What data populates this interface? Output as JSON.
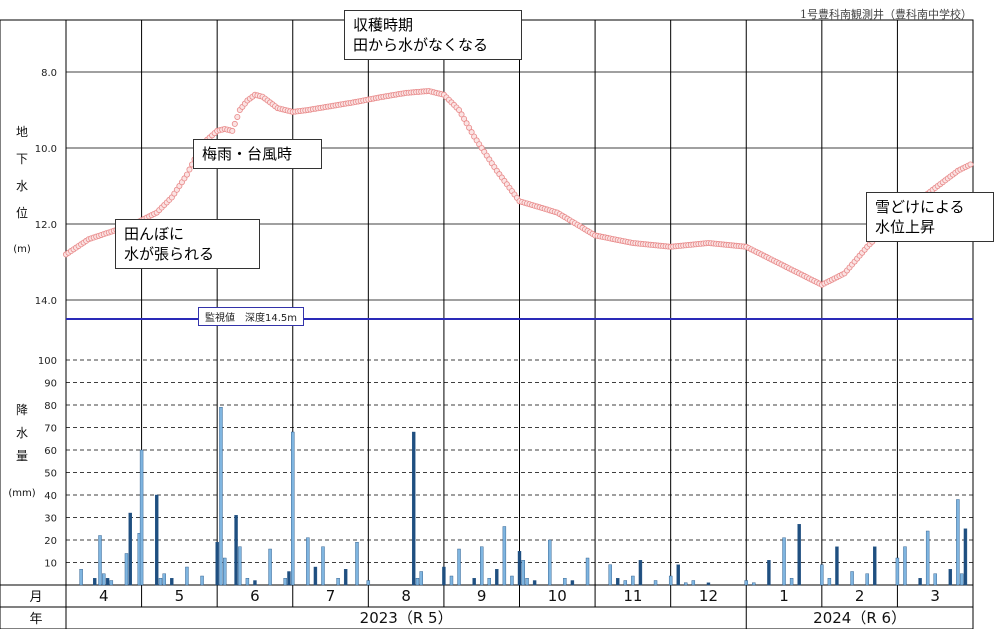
{
  "source_label": "1号豊科南観測井（豊科南中学校）",
  "threshold_label": "監視値　深度14.5m",
  "annotations": [
    {
      "text": "収穫時期\n田から水がなくなる"
    },
    {
      "text": "梅雨・台風時"
    },
    {
      "text": "田んぼに\n水が張られる"
    },
    {
      "text": "雪どけによる\n水位上昇"
    }
  ],
  "colors": {
    "level_line": "#e88a8a",
    "threshold_line": "#2a2ab8",
    "bar_light": "#7fb5e0",
    "bar_dark": "#1f4f80"
  },
  "chart_data": [
    {
      "type": "line",
      "title": "",
      "ylabel": "地下水位(m)",
      "ylabel_unit": "(m)",
      "y_inverted": true,
      "ylim": [
        7.5,
        15.5
      ],
      "yticks": [
        "8.0",
        "10.0",
        "12.0",
        "14.0"
      ],
      "grid": true,
      "threshold": {
        "value": 14.5,
        "label": "監視値　深度14.5m"
      },
      "x_months": [
        "4",
        "5",
        "6",
        "7",
        "8",
        "9",
        "10",
        "11",
        "12",
        "1",
        "2",
        "3"
      ],
      "series": [
        {
          "x": [
            0.0,
            0.3,
            0.6,
            0.9,
            1.2,
            1.4,
            1.6,
            1.8,
            2.0,
            2.1,
            2.2,
            2.3,
            2.4,
            2.5,
            2.6,
            2.7,
            2.8,
            3.0,
            3.2,
            3.5,
            3.8,
            4.2,
            4.5,
            4.8,
            5.0,
            5.2,
            5.4,
            5.7,
            6.0,
            6.5,
            7.0,
            7.5,
            8.0,
            8.5,
            9.0,
            9.3,
            9.5,
            9.8,
            10.0,
            10.3,
            10.6,
            10.8,
            11.0,
            11.2,
            11.4,
            11.6,
            11.8,
            12.0
          ],
          "values": [
            12.8,
            12.4,
            12.2,
            12.0,
            11.7,
            11.3,
            10.7,
            9.9,
            9.55,
            9.5,
            9.55,
            9.0,
            8.75,
            8.6,
            8.65,
            8.8,
            8.95,
            9.05,
            9.0,
            8.9,
            8.8,
            8.65,
            8.55,
            8.5,
            8.6,
            9.0,
            9.7,
            10.6,
            11.4,
            11.7,
            12.3,
            12.5,
            12.6,
            12.5,
            12.6,
            12.9,
            13.1,
            13.4,
            13.6,
            13.3,
            12.6,
            12.2,
            11.8,
            11.5,
            11.2,
            10.9,
            10.6,
            10.4
          ]
        }
      ]
    },
    {
      "type": "bar",
      "ylabel": "降水量(mm)",
      "ylabel_unit": "(mm)",
      "ylim": [
        0,
        100
      ],
      "yticks": [
        "10",
        "20",
        "30",
        "40",
        "50",
        "60",
        "70",
        "80",
        "90",
        "100"
      ],
      "grid": true,
      "x_months": [
        "4",
        "5",
        "6",
        "7",
        "8",
        "9",
        "10",
        "11",
        "12",
        "1",
        "2",
        "3"
      ],
      "month_row_label": "月",
      "year_row_label": "年",
      "year_labels": [
        "2023（R 5）",
        "2024（R 6）"
      ],
      "series": [
        {
          "name": "",
          "x": [
            0.2,
            0.38,
            0.45,
            0.5,
            0.55,
            0.6,
            0.8,
            0.85,
            0.97,
            1.0,
            1.2,
            1.25,
            1.3,
            1.4,
            1.6,
            1.8,
            2.0,
            2.05,
            2.1,
            2.25,
            2.3,
            2.4,
            2.5,
            2.7,
            2.9,
            2.95,
            3.0,
            3.2,
            3.3,
            3.4,
            3.6,
            3.7,
            3.85,
            4.0,
            4.6,
            4.65,
            4.7,
            5.0,
            5.1,
            5.2,
            5.4,
            5.5,
            5.6,
            5.7,
            5.8,
            5.9,
            6.0,
            6.05,
            6.1,
            6.2,
            6.4,
            6.6,
            6.7,
            6.9,
            7.2,
            7.3,
            7.4,
            7.5,
            7.6,
            7.8,
            8.0,
            8.1,
            8.2,
            8.3,
            8.5,
            9.0,
            9.1,
            9.3,
            9.5,
            9.6,
            9.7,
            10.0,
            10.1,
            10.2,
            10.4,
            10.6,
            10.7,
            11.0,
            11.1,
            11.3,
            11.4,
            11.5,
            11.7,
            11.8,
            11.85,
            11.9
          ],
          "values": [
            7,
            3,
            22,
            5,
            3,
            2,
            14,
            32,
            23,
            60,
            40,
            3,
            5,
            3,
            8,
            4,
            19,
            79,
            12,
            31,
            17,
            3,
            2,
            16,
            3,
            6,
            68,
            21,
            8,
            17,
            3,
            7,
            19,
            2,
            68,
            3,
            6,
            8,
            4,
            16,
            3,
            17,
            3,
            7,
            26,
            4,
            15,
            11,
            3,
            2,
            20,
            3,
            2,
            12,
            9,
            3,
            2,
            4,
            11,
            2,
            4,
            9,
            1,
            2,
            1,
            2,
            1,
            11,
            21,
            3,
            27,
            9,
            3,
            17,
            6,
            5,
            17,
            12,
            17,
            3,
            24,
            5,
            7,
            38,
            5,
            25
          ]
        }
      ]
    }
  ]
}
